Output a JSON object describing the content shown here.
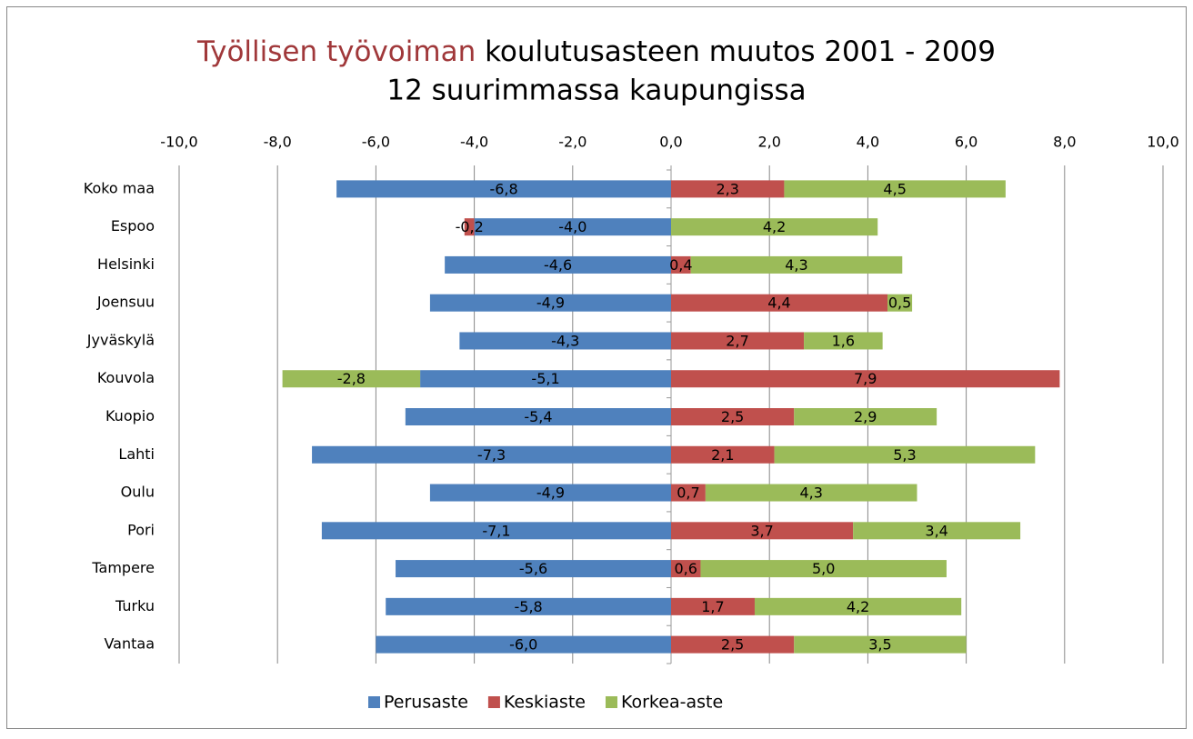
{
  "chart_data": {
    "type": "stacked-bar-horizontal",
    "title": [
      "Työllisen työvoiman",
      "koulutusasteen muutos 2001 - 2009"
    ],
    "title_highlight_color": "#a0383a",
    "subtitle": "12 suurimmassa kaupungissa",
    "categories": [
      "Koko maa",
      "Espoo",
      "Helsinki",
      "Joensuu",
      "Jyväskylä",
      "Kouvola",
      "Kuopio",
      "Lahti",
      "Oulu",
      "Pori",
      "Tampere",
      "Turku",
      "Vantaa"
    ],
    "series": [
      {
        "name": "Perusaste",
        "color": "#4f81bd",
        "values": [
          -6.8,
          -4.0,
          -4.6,
          -4.9,
          -4.3,
          -5.1,
          -5.4,
          -7.3,
          -4.9,
          -7.1,
          -5.6,
          -5.8,
          -6.0
        ],
        "value_labels": [
          "-6,8",
          "-4,0",
          "-4,6",
          "-4,9",
          "-4,3",
          "-5,1",
          "-5,4",
          "-7,3",
          "-4,9",
          "-7,1",
          "-5,6",
          "-5,8",
          "-6,0"
        ]
      },
      {
        "name": "Keskiaste",
        "color": "#c0504d",
        "values": [
          2.3,
          -0.2,
          0.4,
          4.4,
          2.7,
          7.9,
          2.5,
          2.1,
          0.7,
          3.7,
          0.6,
          1.7,
          2.5
        ],
        "value_labels": [
          "2,3",
          "-0,2",
          "0,4",
          "4,4",
          "2,7",
          "7,9",
          "2,5",
          "2,1",
          "0,7",
          "3,7",
          "0,6",
          "1,7",
          "2,5"
        ]
      },
      {
        "name": "Korkea-aste",
        "color": "#9bbb59",
        "values": [
          4.5,
          4.2,
          4.3,
          0.5,
          1.6,
          -2.8,
          2.9,
          5.3,
          4.3,
          3.4,
          5.0,
          4.2,
          3.5
        ],
        "value_labels": [
          "4,5",
          "4,2",
          "4,3",
          "0,5",
          "1,6",
          "-2,8",
          "2,9",
          "5,3",
          "4,3",
          "3,4",
          "5,0",
          "4,2",
          "3,5"
        ]
      }
    ],
    "xlim": [
      -10,
      10
    ],
    "xticks": [
      {
        "value": -10,
        "label": "-10,0"
      },
      {
        "value": -8,
        "label": "-8,0"
      },
      {
        "value": -6,
        "label": "-6,0"
      },
      {
        "value": -4,
        "label": "-4,0"
      },
      {
        "value": -2,
        "label": "-2,0"
      },
      {
        "value": 0,
        "label": "0,0"
      },
      {
        "value": 2,
        "label": "2,0"
      },
      {
        "value": 4,
        "label": "4,0"
      },
      {
        "value": 6,
        "label": "6,0"
      },
      {
        "value": 8,
        "label": "8,0"
      },
      {
        "value": 10,
        "label": "10,0"
      }
    ],
    "grid": true,
    "legend": "bottom"
  }
}
